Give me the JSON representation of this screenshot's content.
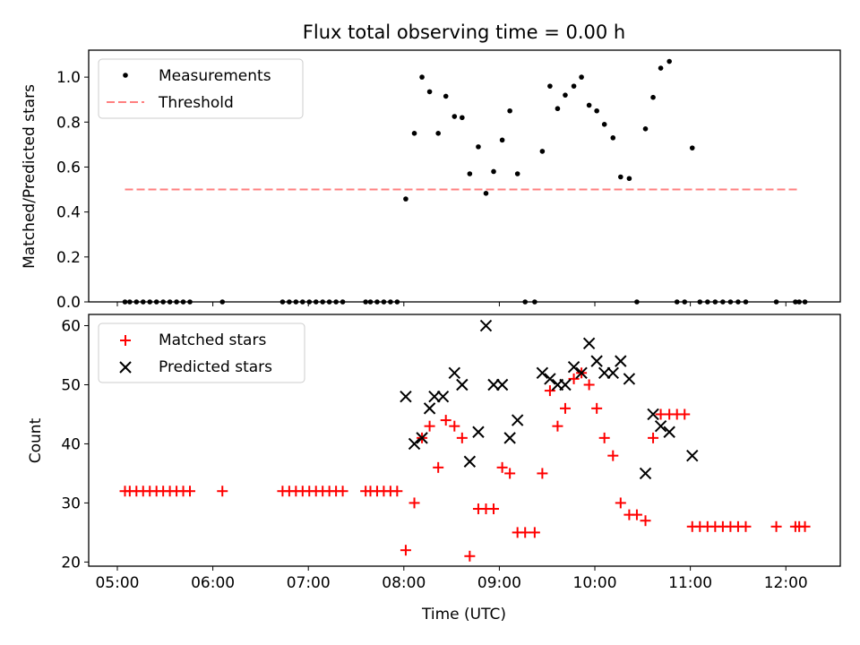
{
  "chart_data": [
    {
      "type": "scatter",
      "title": "Flux total observing time = 0.00 h",
      "xlabel": "",
      "ylabel": "Matched/Predicted stars",
      "ylim": [
        0,
        1.12
      ],
      "yticks": [
        0.0,
        0.2,
        0.4,
        0.6,
        0.8,
        1.0
      ],
      "ytick_labels": [
        "0.0",
        "0.2",
        "0.4",
        "0.6",
        "0.8",
        "1.0"
      ],
      "xlim_hours": [
        4.7,
        12.57
      ],
      "xticks_hours": [
        5,
        6,
        7,
        8,
        9,
        10,
        11,
        12
      ],
      "legend_position": "upper-left",
      "series": [
        {
          "name": "Measurements",
          "marker": "dot",
          "color": "#000000",
          "x_hours": [
            5.08,
            5.13,
            5.2,
            5.27,
            5.34,
            5.41,
            5.48,
            5.55,
            5.62,
            5.69,
            5.76,
            6.1,
            6.73,
            6.8,
            6.87,
            6.94,
            7.01,
            7.08,
            7.15,
            7.22,
            7.29,
            7.36,
            7.6,
            7.65,
            7.72,
            7.79,
            7.86,
            7.93,
            8.02,
            8.11,
            8.19,
            8.27,
            8.36,
            8.44,
            8.53,
            8.61,
            8.69,
            8.78,
            8.86,
            8.94,
            9.03,
            9.11,
            9.19,
            9.27,
            9.37,
            9.45,
            9.53,
            9.61,
            9.69,
            9.78,
            9.86,
            9.94,
            10.02,
            10.1,
            10.19,
            10.27,
            10.36,
            10.44,
            10.53,
            10.61,
            10.69,
            10.78,
            10.86,
            10.94,
            11.02,
            11.1,
            11.18,
            11.26,
            11.34,
            11.42,
            11.5,
            11.58,
            11.9,
            12.1,
            12.14,
            12.2
          ],
          "y": [
            0,
            0,
            0,
            0,
            0,
            0,
            0,
            0,
            0,
            0,
            0,
            0,
            0,
            0,
            0,
            0,
            0,
            0,
            0,
            0,
            0,
            0,
            0,
            0,
            0,
            0,
            0,
            0,
            0.458,
            0.75,
            1.0,
            0.935,
            0.75,
            0.915,
            0.825,
            0.82,
            0.57,
            0.69,
            0.483,
            0.58,
            0.72,
            0.85,
            0.57,
            0,
            0,
            0.67,
            0.96,
            0.86,
            0.92,
            0.96,
            1.0,
            0.875,
            0.85,
            0.79,
            0.73,
            0.556,
            0.549,
            0,
            0.77,
            0.91,
            1.04,
            1.07,
            0,
            0,
            0.685,
            0,
            0,
            0,
            0,
            0,
            0,
            0,
            0,
            0,
            0,
            0
          ]
        },
        {
          "name": "Threshold",
          "style": "dashed",
          "color": "#ff8080",
          "x_hours": [
            5.08,
            12.14
          ],
          "y": [
            0.5,
            0.5
          ]
        }
      ]
    },
    {
      "type": "scatter",
      "title": "",
      "xlabel": "Time (UTC)",
      "ylabel": "Count",
      "ylim": [
        19.3,
        61.9
      ],
      "yticks": [
        20,
        30,
        40,
        50,
        60
      ],
      "ytick_labels": [
        "20",
        "30",
        "40",
        "50",
        "60"
      ],
      "xlim_hours": [
        4.7,
        12.57
      ],
      "xticks_hours": [
        5,
        6,
        7,
        8,
        9,
        10,
        11,
        12
      ],
      "xtick_labels": [
        "05:00",
        "06:00",
        "07:00",
        "08:00",
        "09:00",
        "10:00",
        "11:00",
        "12:00"
      ],
      "legend_position": "upper-left",
      "series": [
        {
          "name": "Matched stars",
          "marker": "plus",
          "color": "#ff0000",
          "x_hours": [
            5.08,
            5.13,
            5.2,
            5.27,
            5.34,
            5.41,
            5.48,
            5.55,
            5.62,
            5.69,
            5.76,
            6.1,
            6.73,
            6.8,
            6.87,
            6.94,
            7.01,
            7.08,
            7.15,
            7.22,
            7.29,
            7.36,
            7.6,
            7.65,
            7.72,
            7.79,
            7.86,
            7.93,
            8.02,
            8.11,
            8.19,
            8.27,
            8.36,
            8.44,
            8.53,
            8.61,
            8.69,
            8.78,
            8.86,
            8.94,
            9.03,
            9.11,
            9.19,
            9.27,
            9.37,
            9.45,
            9.53,
            9.61,
            9.69,
            9.78,
            9.86,
            9.94,
            10.02,
            10.1,
            10.19,
            10.27,
            10.36,
            10.44,
            10.53,
            10.61,
            10.69,
            10.78,
            10.86,
            10.94,
            11.02,
            11.1,
            11.18,
            11.26,
            11.34,
            11.42,
            11.5,
            11.58,
            11.9,
            12.1,
            12.14,
            12.2
          ],
          "y": [
            32,
            32,
            32,
            32,
            32,
            32,
            32,
            32,
            32,
            32,
            32,
            32,
            32,
            32,
            32,
            32,
            32,
            32,
            32,
            32,
            32,
            32,
            32,
            32,
            32,
            32,
            32,
            32,
            22,
            30,
            41,
            43,
            36,
            44,
            43,
            41,
            21,
            29,
            29,
            29,
            36,
            35,
            25,
            25,
            25,
            35,
            49,
            43,
            46,
            51,
            52,
            50,
            46,
            41,
            38,
            30,
            28,
            28,
            27,
            41,
            45,
            45,
            45,
            45,
            26,
            26,
            26,
            26,
            26,
            26,
            26,
            26,
            26,
            26,
            26,
            26
          ]
        },
        {
          "name": "Predicted stars",
          "marker": "x",
          "color": "#000000",
          "x_hours": [
            8.02,
            8.11,
            8.19,
            8.27,
            8.32,
            8.41,
            8.53,
            8.61,
            8.69,
            8.78,
            8.86,
            8.94,
            9.03,
            9.11,
            9.19,
            9.45,
            9.53,
            9.61,
            9.69,
            9.78,
            9.86,
            9.94,
            10.02,
            10.1,
            10.19,
            10.27,
            10.36,
            10.53,
            10.61,
            10.69,
            10.78,
            11.02
          ],
          "y": [
            48,
            40,
            41,
            46,
            48,
            48,
            52,
            50,
            37,
            42,
            60,
            50,
            50,
            41,
            44,
            52,
            51,
            50,
            50,
            53,
            52,
            57,
            54,
            52,
            52,
            54,
            51,
            35,
            45,
            43,
            42,
            38
          ]
        }
      ]
    }
  ]
}
